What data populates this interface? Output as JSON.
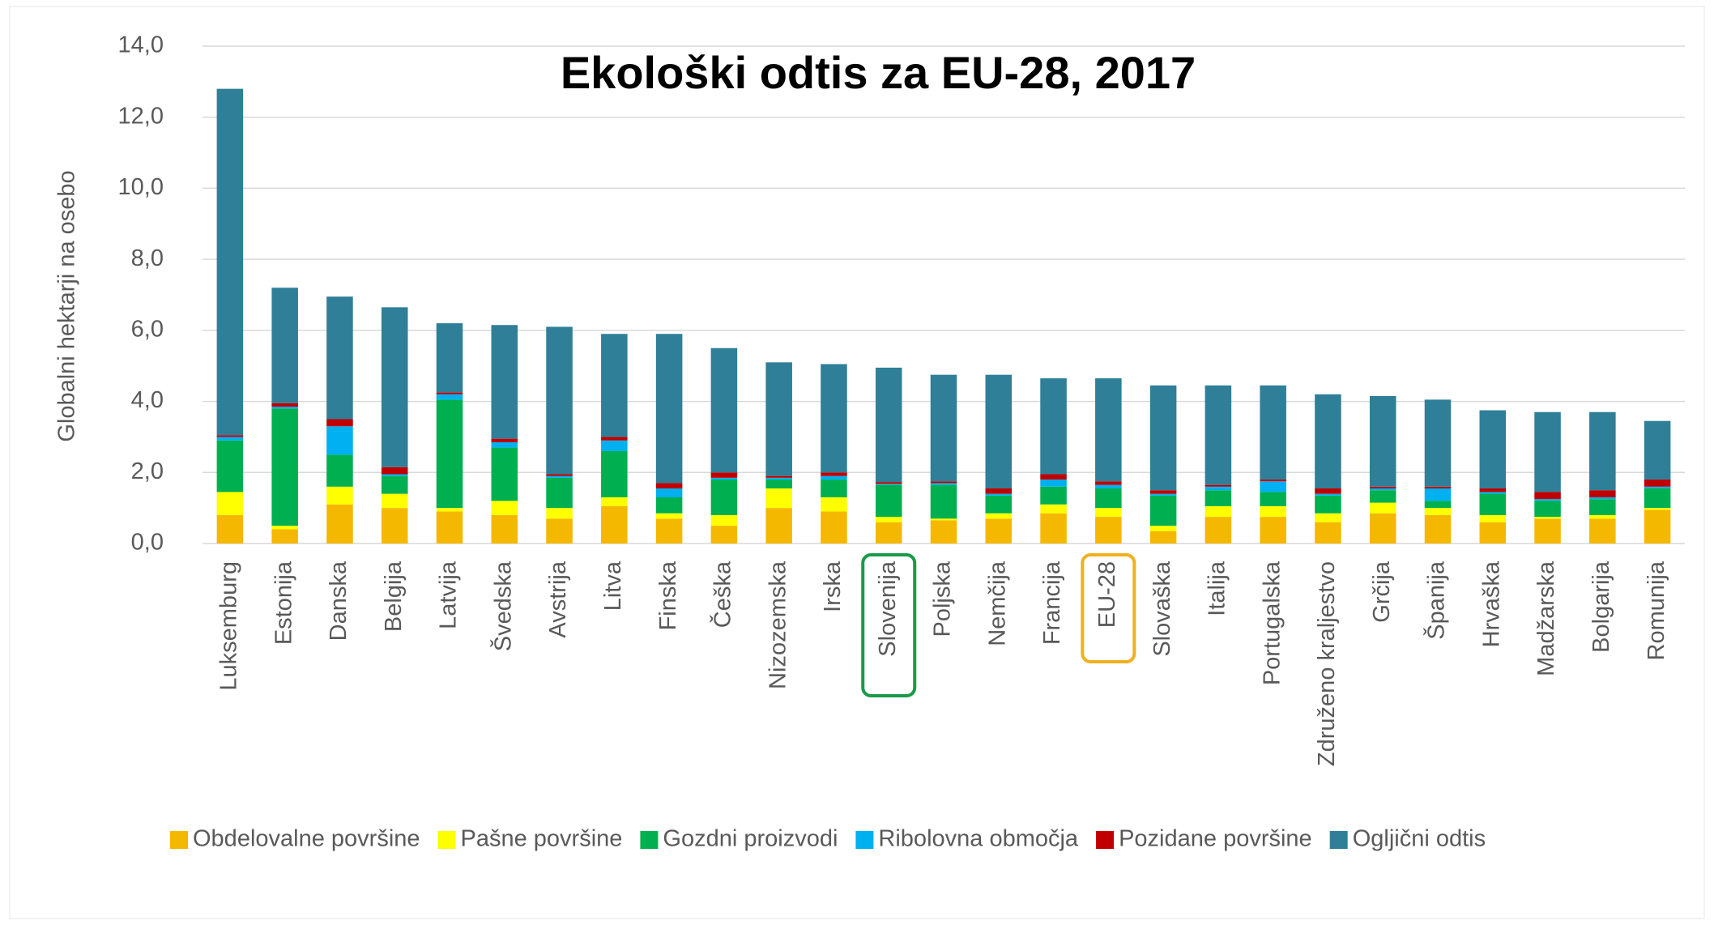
{
  "chart_data": {
    "type": "stacked_bar",
    "title": "Ekološki odtis za EU-28, 2017",
    "y_label": "Globalni hektarji na osebo",
    "categories": [
      "Luksemburg",
      "Estonija",
      "Danska",
      "Belgija",
      "Latvija",
      "Švedska",
      "Avstrija",
      "Litva",
      "Finska",
      "Češka",
      "Nizozemska",
      "Irska",
      "Slovenija",
      "Poljska",
      "Nemčija",
      "Francija",
      "EU-28",
      "Slovaška",
      "Italija",
      "Portugalska",
      "Združeno kraljestvo",
      "Grčija",
      "Španija",
      "Hrvaška",
      "Madžarska",
      "Bolgarija",
      "Romunija"
    ],
    "series": [
      {
        "name": "Obdelovalne površine",
        "color": "#f5b800",
        "values": [
          0.8,
          0.4,
          1.1,
          1.0,
          0.9,
          0.8,
          0.7,
          1.05,
          0.7,
          0.5,
          1.0,
          0.9,
          0.6,
          0.65,
          0.7,
          0.85,
          0.75,
          0.35,
          0.75,
          0.75,
          0.6,
          0.85,
          0.8,
          0.6,
          0.7,
          0.7,
          0.95
        ]
      },
      {
        "name": "Pašne površine",
        "color": "#ffff00",
        "values": [
          0.65,
          0.1,
          0.5,
          0.4,
          0.1,
          0.4,
          0.3,
          0.25,
          0.15,
          0.3,
          0.55,
          0.4,
          0.15,
          0.05,
          0.15,
          0.25,
          0.25,
          0.15,
          0.3,
          0.3,
          0.25,
          0.3,
          0.2,
          0.2,
          0.05,
          0.1,
          0.05
        ]
      },
      {
        "name": "Gozdni proizvodi",
        "color": "#00b050",
        "values": [
          1.45,
          3.3,
          0.9,
          0.5,
          3.05,
          1.5,
          0.85,
          1.3,
          0.45,
          1.0,
          0.25,
          0.5,
          0.9,
          0.95,
          0.5,
          0.5,
          0.55,
          0.85,
          0.45,
          0.4,
          0.5,
          0.35,
          0.2,
          0.6,
          0.45,
          0.45,
          0.55
        ]
      },
      {
        "name": "Ribolovna območja",
        "color": "#00b0f0",
        "values": [
          0.1,
          0.05,
          0.8,
          0.05,
          0.15,
          0.15,
          0.05,
          0.3,
          0.25,
          0.05,
          0.05,
          0.1,
          0.03,
          0.05,
          0.05,
          0.2,
          0.1,
          0.05,
          0.1,
          0.3,
          0.05,
          0.05,
          0.35,
          0.05,
          0.05,
          0.05,
          0.05
        ]
      },
      {
        "name": "Pozidane površine",
        "color": "#c00000",
        "values": [
          0.05,
          0.1,
          0.2,
          0.2,
          0.05,
          0.1,
          0.05,
          0.1,
          0.15,
          0.15,
          0.05,
          0.1,
          0.05,
          0.05,
          0.15,
          0.15,
          0.1,
          0.1,
          0.05,
          0.05,
          0.15,
          0.05,
          0.05,
          0.1,
          0.2,
          0.2,
          0.2
        ]
      },
      {
        "name": "Ogljični odtis",
        "color": "#2f7f98",
        "values": [
          9.75,
          3.25,
          3.45,
          4.5,
          1.95,
          3.2,
          4.15,
          2.9,
          4.2,
          3.5,
          3.2,
          3.05,
          3.22,
          3.0,
          3.2,
          2.7,
          2.9,
          2.95,
          2.8,
          2.65,
          2.65,
          2.55,
          2.45,
          2.2,
          2.25,
          2.2,
          1.65
        ]
      }
    ],
    "ylim": [
      0,
      14
    ],
    "yticks": [
      {
        "value": 0,
        "label": "0,0"
      },
      {
        "value": 2,
        "label": "2,0"
      },
      {
        "value": 4,
        "label": "4,0"
      },
      {
        "value": 6,
        "label": "6,0"
      },
      {
        "value": 8,
        "label": "8,0"
      },
      {
        "value": 10,
        "label": "10,0"
      },
      {
        "value": 12,
        "label": "12,0"
      },
      {
        "value": 14,
        "label": "14,0"
      }
    ],
    "grid": true,
    "legend": "bottom"
  }
}
